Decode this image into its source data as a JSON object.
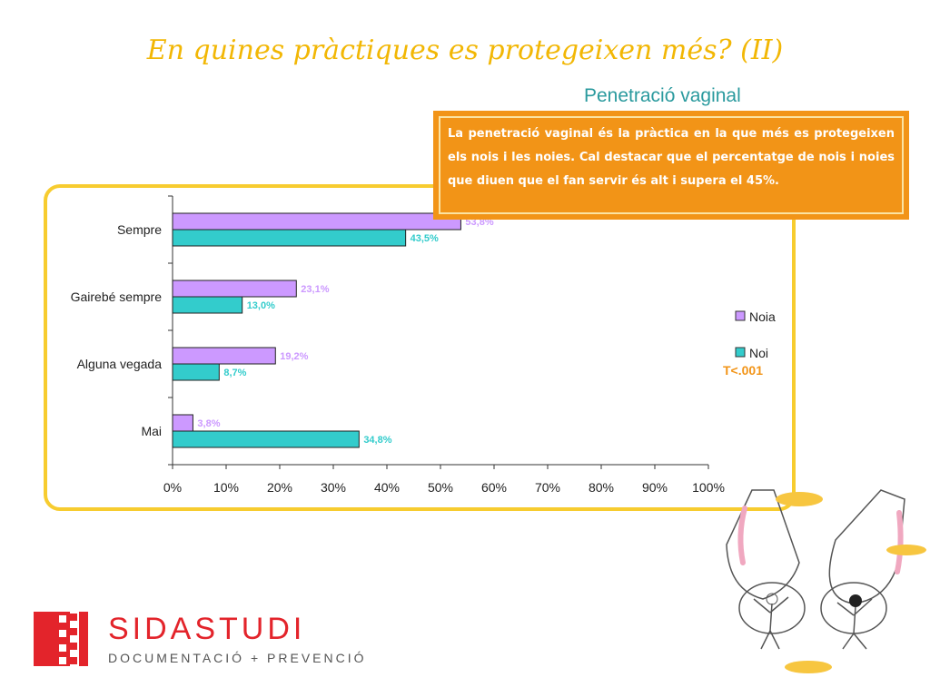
{
  "title": "En quines pràctiques es protegeixen més? (II)",
  "subtitle": "Penetració vaginal",
  "note": "La penetració vaginal és la pràctica en la que més es protegeixen els nois i les noies. Cal destacar que el percentatge de nois i noies que diuen que el fan servir és alt i supera el  45%.",
  "significance": "T<.001",
  "colors": {
    "noia": "#cc99ff",
    "noi": "#33cccc",
    "accent": "#f29417",
    "frame": "#f7cc2f",
    "title": "#f2b705"
  },
  "logo": {
    "brand": "SIDASTUDI",
    "tagline": "DOCUMENTACIÓ + PREVENCIÓ",
    "color": "#e3242b"
  },
  "chart_data": {
    "type": "bar",
    "orientation": "horizontal",
    "categories": [
      "Sempre",
      "Gairebé sempre",
      "Alguna vegada",
      "Mai"
    ],
    "series": [
      {
        "name": "Noia",
        "values": [
          53.8,
          23.1,
          19.2,
          3.8
        ],
        "labels": [
          "53,8%",
          "23,1%",
          "19,2%",
          "3,8%"
        ]
      },
      {
        "name": "Noi",
        "values": [
          43.5,
          13.0,
          8.7,
          34.8
        ],
        "labels": [
          "43,5%",
          "13,0%",
          "8,7%",
          "34,8%"
        ]
      }
    ],
    "xlim": [
      0,
      100
    ],
    "x_ticks": [
      "0%",
      "10%",
      "20%",
      "30%",
      "40%",
      "50%",
      "60%",
      "70%",
      "80%",
      "90%",
      "100%"
    ],
    "legend_position": "right",
    "grid": false
  }
}
